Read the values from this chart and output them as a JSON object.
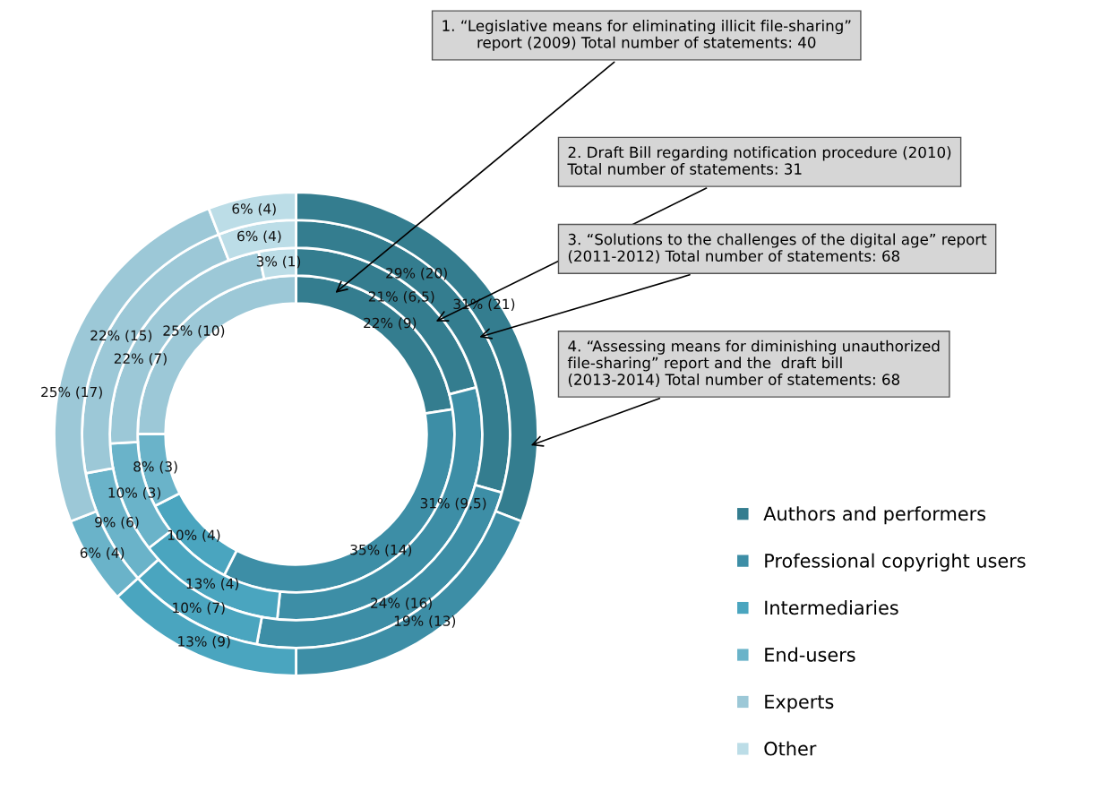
{
  "chart_data": {
    "type": "donut",
    "categories": [
      "Authors and performers",
      "Professional copyright users",
      "Intermediaries",
      "End-users",
      "Experts",
      "Other"
    ],
    "colors": [
      "#347d8f",
      "#3d8ea6",
      "#4aa5bf",
      "#6ab3c9",
      "#9cc8d7",
      "#bcdde7"
    ],
    "series": [
      {
        "values": [
          9,
          14,
          4,
          3,
          10,
          0
        ],
        "value_labels": [
          "22% (9)",
          "35% (14)",
          "10% (4)",
          "8% (3)",
          "25% (10)",
          null
        ]
      },
      {
        "values": [
          6.5,
          9.5,
          4,
          3,
          7,
          1
        ],
        "value_labels": [
          "21% (6,5)",
          "31% (9,5)",
          "13% (4)",
          "10% (3)",
          "22% (7)",
          "3% (1)"
        ]
      },
      {
        "values": [
          20,
          16,
          7,
          6,
          15,
          4
        ],
        "value_labels": [
          "29% (20)",
          "24% (16)",
          "10% (7)",
          "9% (6)",
          "22% (15)",
          "6% (4)"
        ]
      },
      {
        "values": [
          21,
          13,
          9,
          4,
          17,
          4
        ],
        "value_labels": [
          "31% (21)",
          "19% (13)",
          "13% (9)",
          "6% (4)",
          "25% (17)",
          "6% (4)"
        ]
      }
    ],
    "annotations": [
      "1. “Legislative means for eliminating illicit file-sharing”\nreport (2009) Total number of statements: 40",
      "2. Draft Bill regarding notification procedure (2010)\nTotal number of statements: 31",
      "3. “Solutions to the challenges of the digital age” report\n(2011-2012) Total number of statements: 68",
      "4. “Assessing means for diminishing unauthorized\nfile-sharing” report and the  draft bill\n(2013-2014) Total number of statements: 68"
    ],
    "legend": "right"
  }
}
